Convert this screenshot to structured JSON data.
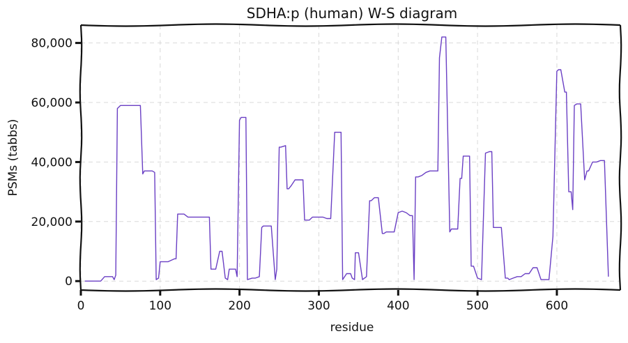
{
  "chart_data": {
    "type": "line",
    "title": "SDHA:p (human) W-S diagram",
    "xlabel": "residue",
    "ylabel": "PSMs (tabbs)",
    "xlim": [
      0,
      680
    ],
    "ylim": [
      -3000,
      86000
    ],
    "grid": true,
    "x_ticks": [
      0,
      100,
      200,
      300,
      400,
      500,
      600
    ],
    "x_tick_labels": [
      "0",
      "100",
      "200",
      "300",
      "400",
      "500",
      "600"
    ],
    "y_ticks": [
      0,
      20000,
      40000,
      60000,
      80000
    ],
    "y_tick_labels": [
      "0",
      "20,000",
      "40,000",
      "60,000",
      "80,000"
    ],
    "colors": {
      "line": "#6a3fc4",
      "grid": "#d9d9d9",
      "axis": "#111111"
    },
    "series": [
      {
        "x": [
          5,
          8,
          15,
          25,
          30,
          31,
          40,
          42,
          44,
          46,
          50,
          52,
          60,
          65,
          75,
          78,
          80,
          90,
          93,
          95,
          98,
          100,
          102,
          110,
          118,
          120,
          122,
          130,
          135,
          140,
          150,
          162,
          164,
          170,
          175,
          178,
          182,
          185,
          187,
          195,
          197,
          200,
          202,
          208,
          210,
          216,
          220,
          225,
          228,
          230,
          235,
          240,
          245,
          247,
          250,
          252,
          258,
          260,
          262,
          265,
          270,
          275,
          280,
          282,
          288,
          290,
          292,
          300,
          305,
          310,
          315,
          320,
          322,
          325,
          328,
          330,
          335,
          340,
          342,
          345,
          346,
          350,
          355,
          360,
          364,
          366,
          370,
          375,
          380,
          382,
          385,
          390,
          395,
          400,
          405,
          410,
          415,
          418,
          420,
          422,
          425,
          430,
          435,
          440,
          445,
          450,
          452,
          455,
          458,
          460,
          465,
          467,
          470,
          475,
          478,
          480,
          482,
          485,
          490,
          492,
          495,
          500,
          505,
          510,
          515,
          518,
          520,
          522,
          525,
          530,
          535,
          538,
          540,
          545,
          550,
          555,
          560,
          565,
          570,
          575,
          580,
          585,
          590,
          595,
          600,
          602,
          605,
          610,
          612,
          615,
          618,
          620,
          622,
          625,
          630,
          635,
          638,
          640,
          645,
          650,
          655,
          660,
          665
        ],
        "values": [
          0,
          0,
          0,
          0,
          1500,
          1500,
          1500,
          500,
          2000,
          58000,
          59000,
          59000,
          59000,
          59000,
          59000,
          36000,
          37000,
          37000,
          36500,
          500,
          1000,
          6500,
          6500,
          6500,
          7500,
          7500,
          22500,
          22500,
          21500,
          21500,
          21500,
          21500,
          4000,
          4000,
          10000,
          10000,
          1000,
          500,
          4000,
          4000,
          1500,
          54000,
          55000,
          55000,
          500,
          1000,
          1000,
          1500,
          18000,
          18500,
          18500,
          18500,
          500,
          4000,
          45000,
          45000,
          45500,
          31000,
          31000,
          32000,
          34000,
          34000,
          34000,
          20500,
          20500,
          21000,
          21500,
          21500,
          21500,
          21000,
          21000,
          50000,
          50000,
          50000,
          50000,
          500,
          2500,
          2500,
          1000,
          500,
          9500,
          9500,
          500,
          1500,
          27000,
          27000,
          28000,
          28000,
          16000,
          16000,
          16500,
          16500,
          16500,
          23000,
          23500,
          23000,
          22000,
          22000,
          500,
          35000,
          35000,
          35500,
          36500,
          37000,
          37000,
          37000,
          75000,
          82000,
          82000,
          82000,
          16500,
          17500,
          17500,
          17500,
          34500,
          34500,
          42000,
          42000,
          42000,
          5000,
          5000,
          1000,
          500,
          43000,
          43500,
          43500,
          18000,
          18000,
          18000,
          18000,
          1000,
          1000,
          500,
          1000,
          1500,
          1500,
          2500,
          2500,
          4500,
          4500,
          500,
          500,
          500,
          15000,
          70500,
          71000,
          71000,
          63500,
          63500,
          30000,
          30000,
          24000,
          59000,
          59500,
          59500,
          34000,
          37000,
          37000,
          40000,
          40000,
          40500,
          40500,
          1500
        ]
      }
    ]
  }
}
